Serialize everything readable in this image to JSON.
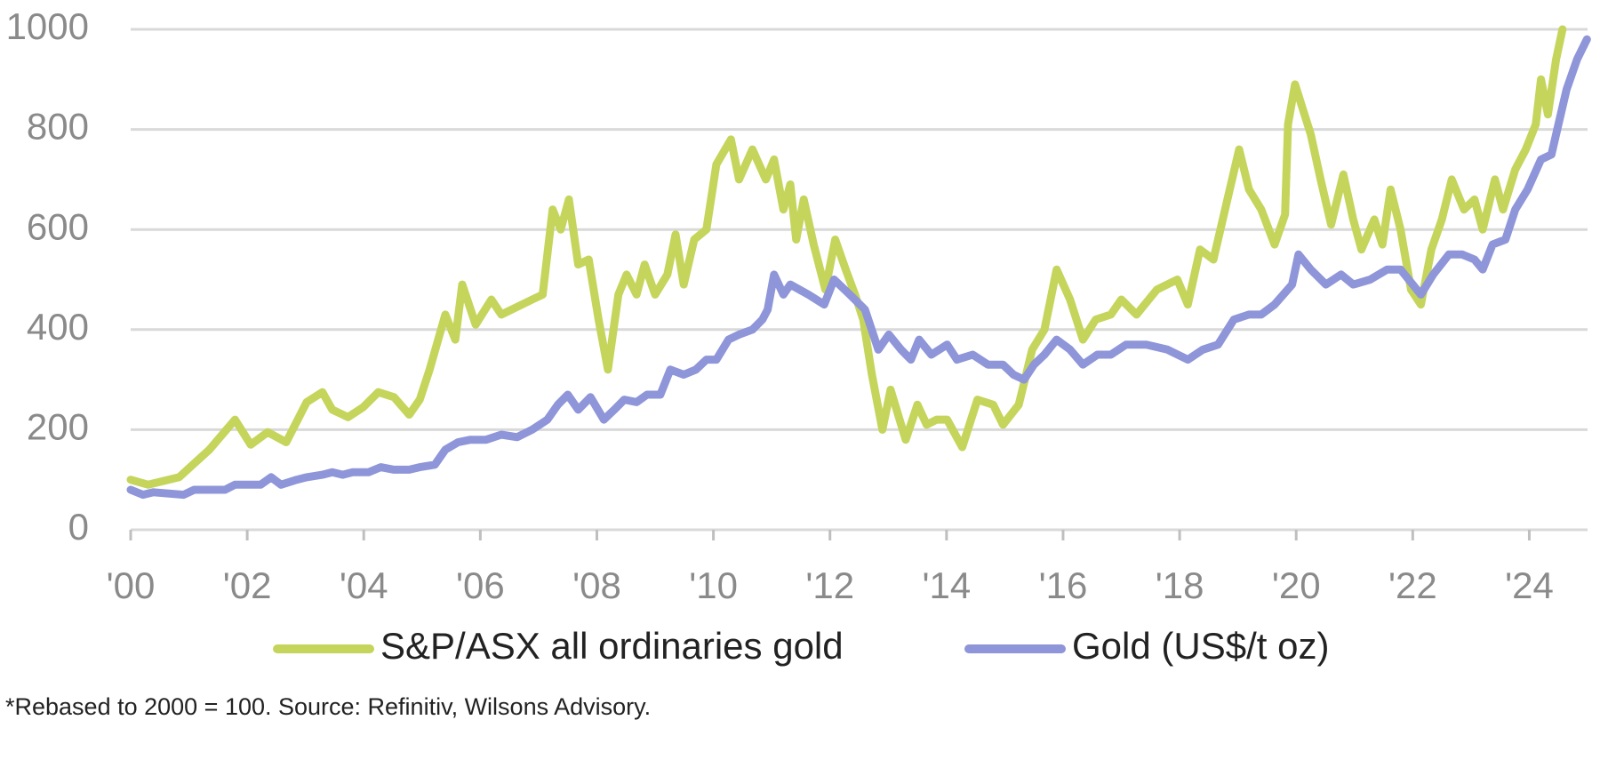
{
  "chart_data": {
    "type": "line",
    "xlim": [
      2000,
      2025
    ],
    "xticks": [
      {
        "value": 2000,
        "label": "'00"
      },
      {
        "value": 2002,
        "label": "'02"
      },
      {
        "value": 2004,
        "label": "'04"
      },
      {
        "value": 2006,
        "label": "'06"
      },
      {
        "value": 2008,
        "label": "'08"
      },
      {
        "value": 2010,
        "label": "'10"
      },
      {
        "value": 2012,
        "label": "'12"
      },
      {
        "value": 2014,
        "label": "'14"
      },
      {
        "value": 2016,
        "label": "'16"
      },
      {
        "value": 2018,
        "label": "'18"
      },
      {
        "value": 2020,
        "label": "'20"
      },
      {
        "value": 2022,
        "label": "'22"
      },
      {
        "value": 2024,
        "label": "'24"
      }
    ],
    "ylim": [
      0,
      1000
    ],
    "yticks": [
      0,
      200,
      400,
      600,
      800,
      1000
    ],
    "grid": true,
    "legend": "bottom",
    "footnote": "*Rebased to 2000 = 100. Source: Refinitiv, Wilsons Advisory.",
    "series": [
      {
        "name": "S&P/ASX all ordinaries gold",
        "color": "#c5d55c",
        "x": [
          2000.0,
          2000.3,
          2000.83,
          2001.35,
          2001.79,
          2002.06,
          2002.35,
          2002.67,
          2003.02,
          2003.29,
          2003.46,
          2003.73,
          2003.99,
          2004.25,
          2004.52,
          2004.78,
          2004.96,
          2005.13,
          2005.4,
          2005.57,
          2005.69,
          2005.92,
          2006.19,
          2006.36,
          2006.89,
          2007.07,
          2007.24,
          2007.38,
          2007.52,
          2007.68,
          2007.86,
          2008.03,
          2008.19,
          2008.37,
          2008.51,
          2008.68,
          2008.82,
          2009.0,
          2009.21,
          2009.35,
          2009.49,
          2009.67,
          2009.88,
          2010.05,
          2010.3,
          2010.44,
          2010.67,
          2010.9,
          2011.04,
          2011.2,
          2011.32,
          2011.42,
          2011.55,
          2011.72,
          2011.92,
          2012.09,
          2012.27,
          2012.43,
          2012.57,
          2012.72,
          2012.9,
          2013.04,
          2013.3,
          2013.5,
          2013.66,
          2013.83,
          2014.01,
          2014.27,
          2014.53,
          2014.8,
          2014.97,
          2015.24,
          2015.47,
          2015.68,
          2015.89,
          2016.12,
          2016.34,
          2016.56,
          2016.82,
          2017.0,
          2017.26,
          2017.61,
          2017.96,
          2018.14,
          2018.35,
          2018.58,
          2018.8,
          2019.02,
          2019.19,
          2019.4,
          2019.63,
          2019.81,
          2019.86,
          2019.98,
          2020.25,
          2020.42,
          2020.6,
          2020.81,
          2020.98,
          2021.12,
          2021.34,
          2021.48,
          2021.62,
          2021.79,
          2021.97,
          2022.14,
          2022.32,
          2022.5,
          2022.67,
          2022.88,
          2023.06,
          2023.2,
          2023.41,
          2023.55,
          2023.76,
          2023.94,
          2024.11,
          2024.2,
          2024.32,
          2024.46,
          2024.57
        ],
        "values": [
          100,
          90,
          105,
          160,
          220,
          170,
          195,
          175,
          255,
          275,
          240,
          225,
          245,
          275,
          265,
          230,
          260,
          320,
          430,
          380,
          490,
          410,
          460,
          430,
          460,
          470,
          640,
          600,
          660,
          530,
          540,
          420,
          320,
          470,
          510,
          470,
          530,
          470,
          510,
          590,
          490,
          580,
          600,
          730,
          780,
          700,
          760,
          700,
          740,
          640,
          690,
          580,
          660,
          570,
          480,
          580,
          520,
          470,
          420,
          310,
          200,
          280,
          180,
          250,
          210,
          220,
          220,
          165,
          260,
          250,
          210,
          250,
          360,
          400,
          520,
          460,
          380,
          420,
          430,
          460,
          430,
          480,
          500,
          450,
          560,
          540,
          650,
          760,
          680,
          640,
          570,
          630,
          810,
          890,
          790,
          700,
          610,
          710,
          620,
          560,
          620,
          570,
          680,
          600,
          480,
          450,
          560,
          620,
          700,
          640,
          660,
          600,
          700,
          640,
          720,
          760,
          810,
          900,
          830,
          940,
          1000
        ]
      },
      {
        "name": "Gold (US$/t oz)",
        "color": "#8e95d8",
        "x": [
          2000.0,
          2000.21,
          2000.39,
          2000.91,
          2001.09,
          2001.62,
          2001.79,
          2002.23,
          2002.41,
          2002.58,
          2002.85,
          2003.02,
          2003.29,
          2003.46,
          2003.64,
          2003.81,
          2004.08,
          2004.29,
          2004.52,
          2004.78,
          2004.96,
          2005.22,
          2005.4,
          2005.62,
          2005.83,
          2006.1,
          2006.36,
          2006.63,
          2006.89,
          2007.15,
          2007.33,
          2007.5,
          2007.68,
          2007.89,
          2008.12,
          2008.3,
          2008.47,
          2008.68,
          2008.86,
          2009.09,
          2009.26,
          2009.49,
          2009.7,
          2009.88,
          2010.05,
          2010.26,
          2010.44,
          2010.67,
          2010.84,
          2010.93,
          2011.04,
          2011.2,
          2011.32,
          2011.63,
          2011.9,
          2012.07,
          2012.34,
          2012.6,
          2012.83,
          2013.01,
          2013.22,
          2013.39,
          2013.53,
          2013.74,
          2014.01,
          2014.18,
          2014.45,
          2014.71,
          2014.97,
          2015.15,
          2015.33,
          2015.5,
          2015.68,
          2015.89,
          2016.12,
          2016.34,
          2016.59,
          2016.82,
          2017.08,
          2017.43,
          2017.79,
          2018.14,
          2018.4,
          2018.66,
          2018.93,
          2019.19,
          2019.4,
          2019.63,
          2019.93,
          2020.04,
          2020.25,
          2020.51,
          2020.77,
          2020.98,
          2021.27,
          2021.56,
          2021.79,
          2022.14,
          2022.35,
          2022.62,
          2022.85,
          2023.06,
          2023.2,
          2023.37,
          2023.59,
          2023.76,
          2023.97,
          2024.2,
          2024.38,
          2024.5,
          2024.64,
          2024.82,
          2024.99
        ],
        "values": [
          80,
          70,
          75,
          70,
          80,
          80,
          90,
          90,
          105,
          90,
          100,
          105,
          110,
          115,
          110,
          115,
          115,
          125,
          120,
          120,
          125,
          130,
          160,
          175,
          180,
          180,
          190,
          185,
          200,
          220,
          250,
          270,
          240,
          265,
          220,
          240,
          260,
          255,
          270,
          270,
          320,
          310,
          320,
          340,
          340,
          380,
          390,
          400,
          420,
          440,
          510,
          470,
          490,
          470,
          450,
          500,
          470,
          440,
          360,
          390,
          360,
          340,
          380,
          350,
          370,
          340,
          350,
          330,
          330,
          310,
          300,
          330,
          350,
          380,
          360,
          330,
          350,
          350,
          370,
          370,
          360,
          340,
          360,
          370,
          420,
          430,
          430,
          450,
          490,
          550,
          520,
          490,
          510,
          490,
          500,
          520,
          520,
          470,
          510,
          550,
          550,
          540,
          520,
          570,
          580,
          640,
          680,
          740,
          750,
          810,
          880,
          940,
          980
        ]
      }
    ]
  }
}
